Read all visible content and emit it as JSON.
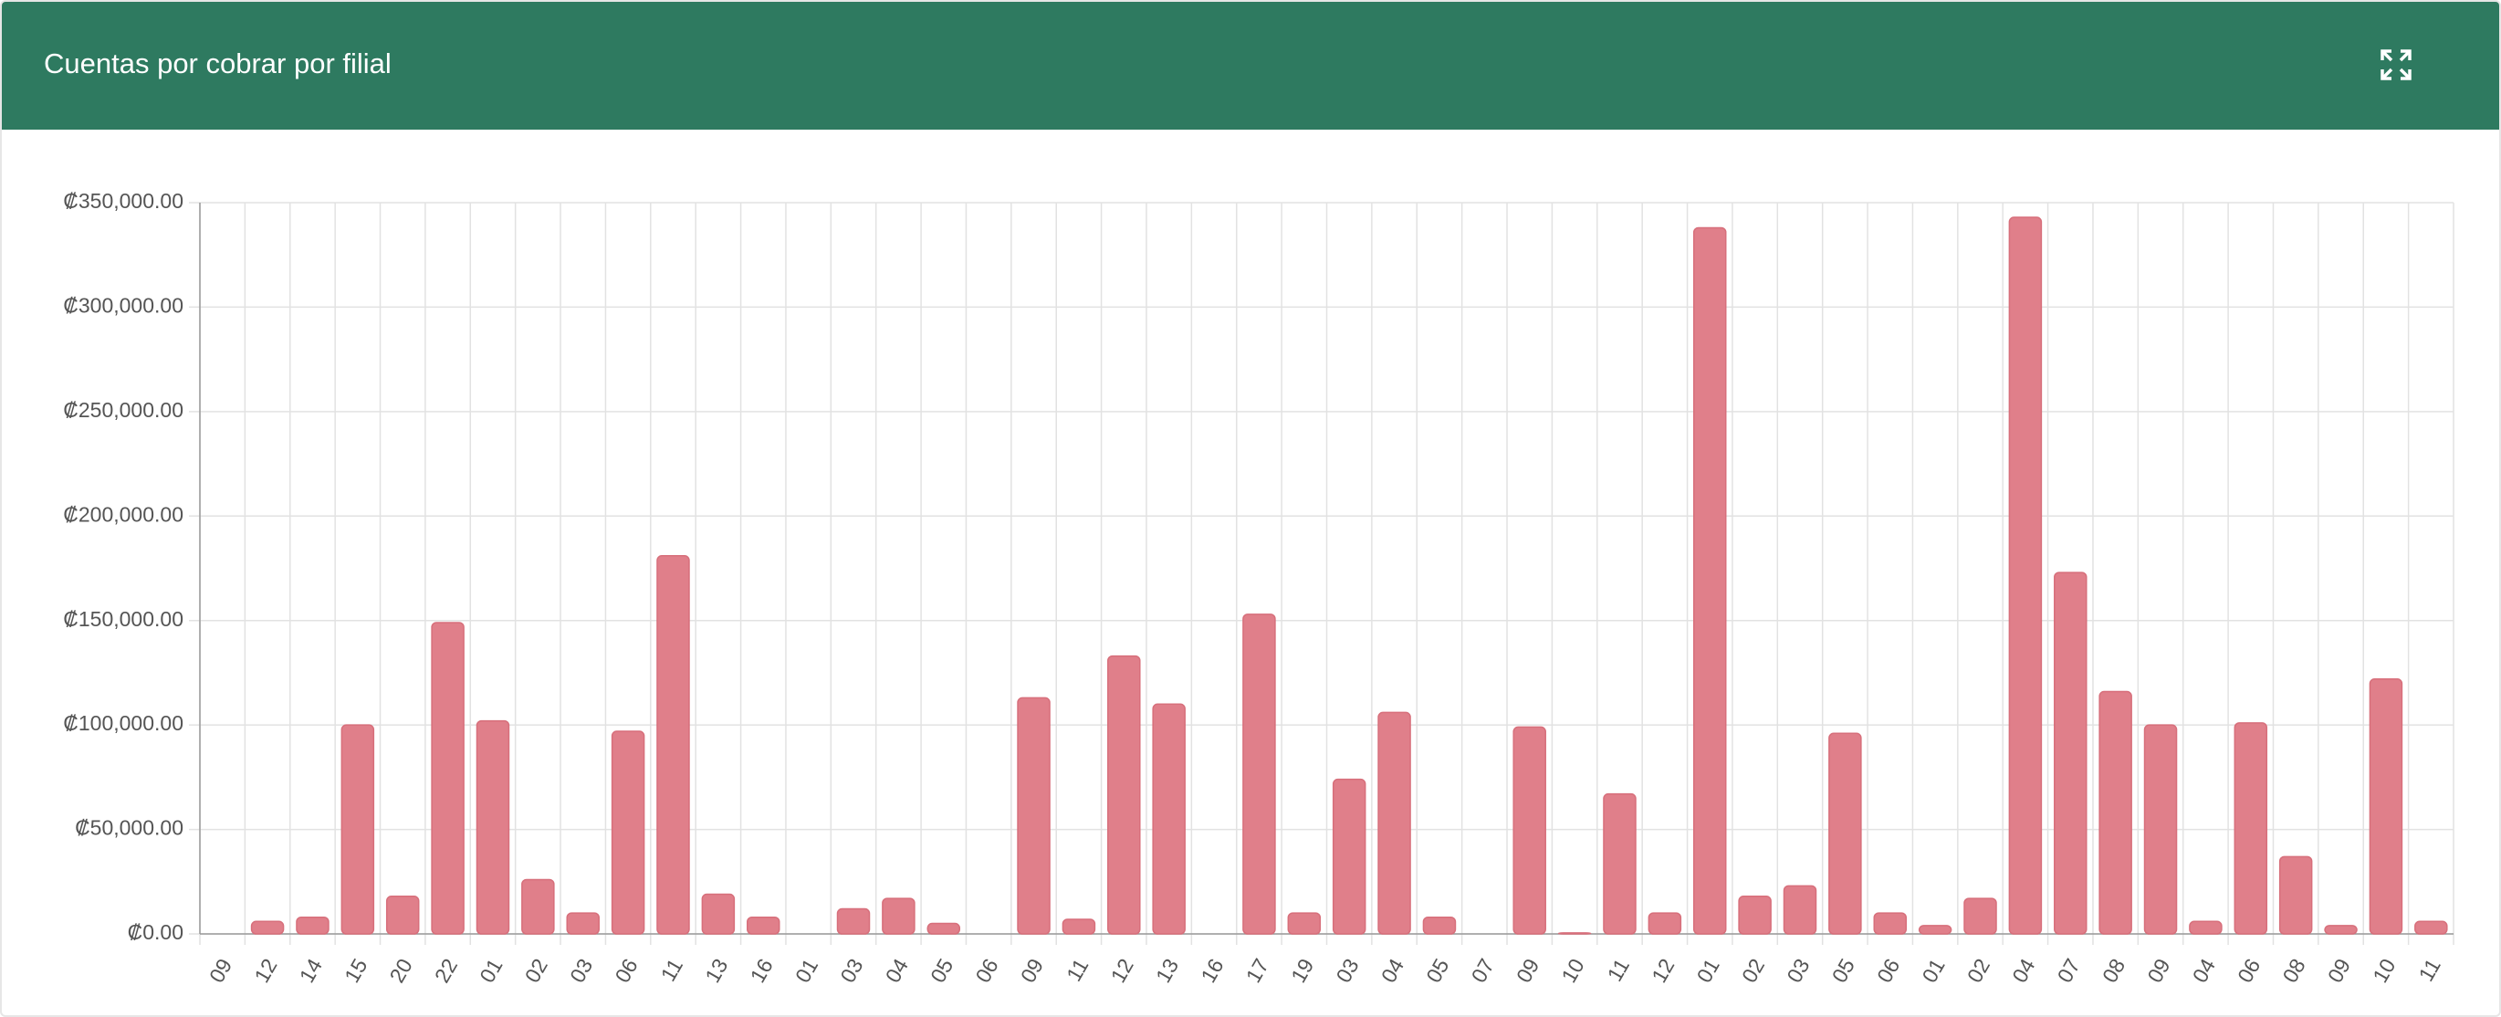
{
  "header": {
    "title": "Cuentas por cobrar por filial"
  },
  "chart_data": {
    "type": "bar",
    "categories": [
      "09",
      "12",
      "14",
      "15",
      "20",
      "22",
      "01",
      "02",
      "03",
      "06",
      "11",
      "13",
      "16",
      "01",
      "03",
      "04",
      "05",
      "06",
      "09",
      "11",
      "12",
      "13",
      "16",
      "17",
      "19",
      "03",
      "04",
      "05",
      "07",
      "09",
      "10",
      "11",
      "12",
      "01",
      "02",
      "03",
      "05",
      "06",
      "01",
      "02",
      "04",
      "07",
      "08",
      "09",
      "04",
      "06",
      "08",
      "09",
      "10",
      "11"
    ],
    "values": [
      0,
      6000,
      8000,
      100000,
      18000,
      149000,
      102000,
      26000,
      10000,
      97000,
      181000,
      19000,
      8000,
      0,
      12000,
      17000,
      5000,
      0,
      113000,
      7000,
      133000,
      110000,
      0,
      153000,
      10000,
      74000,
      106000,
      8000,
      0,
      99000,
      500,
      67000,
      10000,
      338000,
      18000,
      23000,
      96000,
      10000,
      4000,
      17000,
      343000,
      173000,
      116000,
      100000,
      6000,
      101000,
      37000,
      4000,
      122000,
      6000
    ],
    "color": "#e07f8a",
    "ylim": [
      0,
      350000
    ],
    "yticks": [
      {
        "value": 0,
        "label": "₡0.00"
      },
      {
        "value": 50000,
        "label": "₡50,000.00"
      },
      {
        "value": 100000,
        "label": "₡100,000.00"
      },
      {
        "value": 150000,
        "label": "₡150,000.00"
      },
      {
        "value": 200000,
        "label": "₡200,000.00"
      },
      {
        "value": 250000,
        "label": "₡250,000.00"
      },
      {
        "value": 300000,
        "label": "₡300,000.00"
      },
      {
        "value": 350000,
        "label": "₡350,000.00"
      }
    ],
    "grid": true
  }
}
